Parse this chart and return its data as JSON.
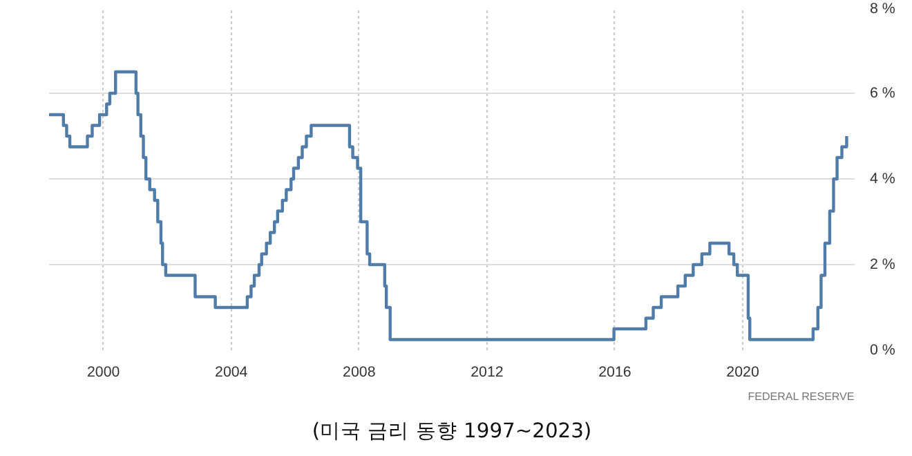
{
  "chart_data": {
    "type": "step",
    "color": "#4f7ca8",
    "x": [
      1998.3,
      1998.75,
      1998.85,
      1998.95,
      1999.5,
      1999.65,
      1999.88,
      2000.1,
      2000.2,
      2000.38,
      2001.02,
      2001.08,
      2001.17,
      2001.25,
      2001.33,
      2001.45,
      2001.6,
      2001.7,
      2001.8,
      2001.85,
      2001.95,
      2002.87,
      2003.5,
      2004.5,
      2004.62,
      2004.72,
      2004.87,
      2004.95,
      2005.1,
      2005.22,
      2005.35,
      2005.45,
      2005.6,
      2005.72,
      2005.87,
      2005.95,
      2006.1,
      2006.22,
      2006.35,
      2006.5,
      2007.7,
      2007.8,
      2007.95,
      2008.05,
      2008.08,
      2008.25,
      2008.33,
      2008.8,
      2008.85,
      2008.97,
      2015.97,
      2016.97,
      2017.2,
      2017.45,
      2017.97,
      2018.2,
      2018.45,
      2018.72,
      2018.97,
      2019.57,
      2019.72,
      2019.83,
      2020.17,
      2020.22,
      2022.2,
      2022.35,
      2022.45,
      2022.57,
      2022.72,
      2022.84,
      2022.95,
      2023.1,
      2023.25
    ],
    "values": [
      5.5,
      5.25,
      5.0,
      4.75,
      5.0,
      5.25,
      5.5,
      5.75,
      6.0,
      6.5,
      6.0,
      5.5,
      5.0,
      4.5,
      4.0,
      3.75,
      3.5,
      3.0,
      2.5,
      2.0,
      1.75,
      1.25,
      1.0,
      1.25,
      1.5,
      1.75,
      2.0,
      2.25,
      2.5,
      2.75,
      3.0,
      3.25,
      3.5,
      3.75,
      4.0,
      4.25,
      4.5,
      4.75,
      5.0,
      5.25,
      4.75,
      4.5,
      4.25,
      3.0,
      3.0,
      2.25,
      2.0,
      1.5,
      1.0,
      0.25,
      0.5,
      0.75,
      1.0,
      1.25,
      1.5,
      1.75,
      2.0,
      2.25,
      2.5,
      2.25,
      2.0,
      1.75,
      0.75,
      0.25,
      0.5,
      1.0,
      1.75,
      2.5,
      3.25,
      4.0,
      4.5,
      4.75,
      5.0
    ],
    "xlim": [
      1998.3,
      2023.5
    ],
    "xticks": [
      2000,
      2004,
      2008,
      2012,
      2016,
      2020
    ],
    "ylim": [
      0,
      8
    ],
    "yticks": [
      {
        "value": 0,
        "label": "0 %"
      },
      {
        "value": 2,
        "label": "2 %"
      },
      {
        "value": 4,
        "label": "4 %"
      },
      {
        "value": 6,
        "label": "6 %"
      },
      {
        "value": 8,
        "label": "8 %"
      }
    ],
    "grid": true,
    "line_style": "solid",
    "annotations": [
      "FEDERAL RESERVE",
      "(미국 금리 동향 1997~2023)"
    ]
  }
}
